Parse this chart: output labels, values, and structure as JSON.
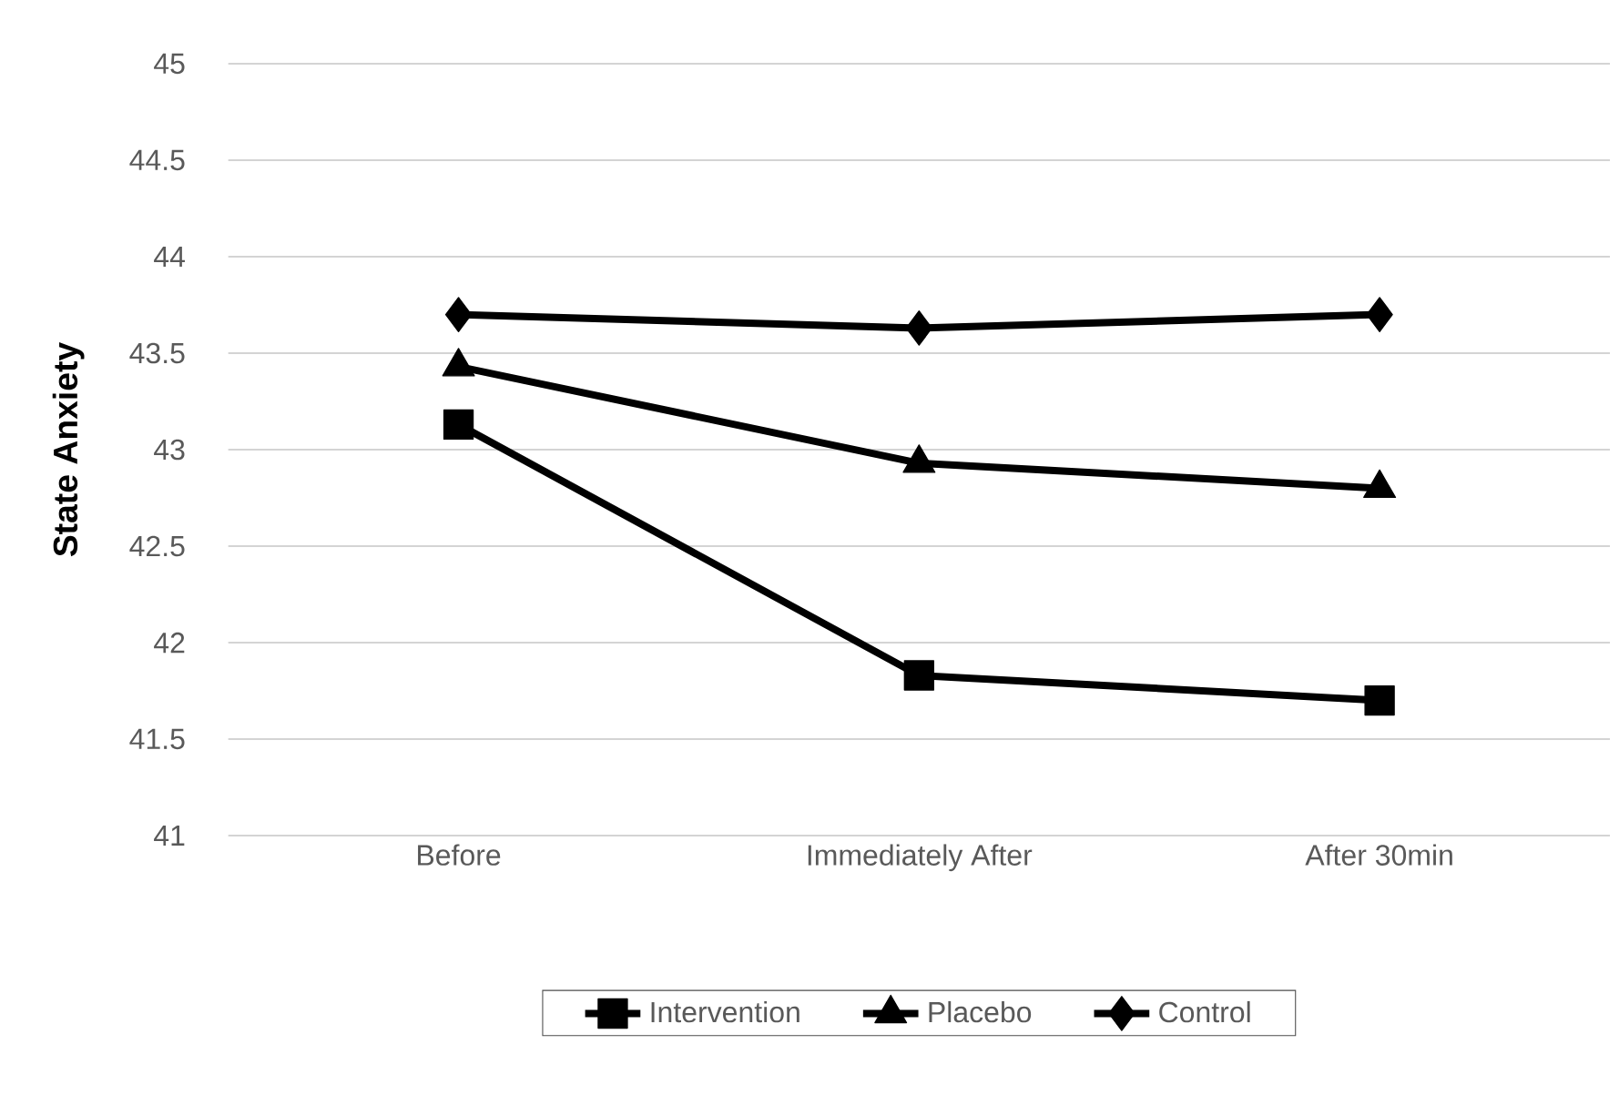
{
  "chart_data": {
    "type": "line",
    "ylabel": "State Anxiety",
    "categories": [
      "Before",
      "Immediately After",
      "After 30min"
    ],
    "series": [
      {
        "name": "Intervention",
        "color": "#000000",
        "marker": "square",
        "values": [
          43.13,
          41.83,
          41.7
        ]
      },
      {
        "name": "Placebo",
        "color": "#000000",
        "marker": "triangle",
        "values": [
          43.43,
          42.93,
          42.8
        ]
      },
      {
        "name": "Control",
        "color": "#000000",
        "marker": "diamond",
        "values": [
          43.7,
          43.63,
          43.7
        ]
      }
    ],
    "ylim": [
      41,
      45
    ],
    "yticks": [
      41,
      41.5,
      42,
      42.5,
      43,
      43.5,
      44,
      44.5,
      45
    ],
    "grid": "y",
    "legend": "bottom",
    "line_style": "solid"
  }
}
